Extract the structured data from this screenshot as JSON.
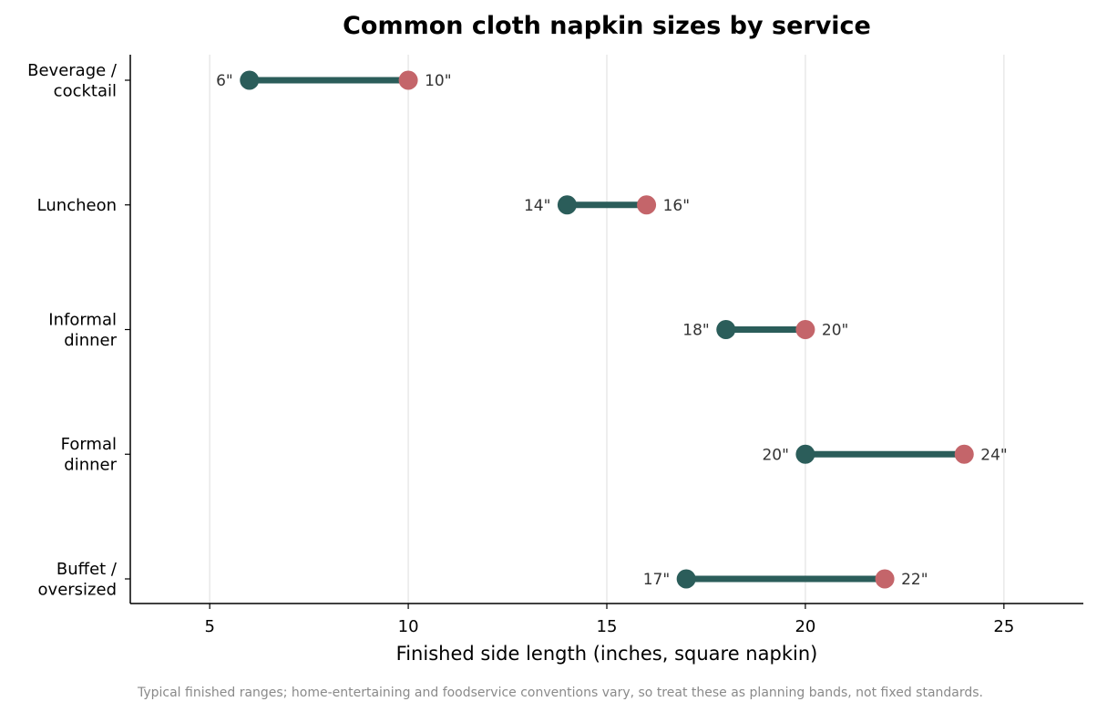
{
  "chart_data": {
    "type": "dumbbell",
    "title": "Common cloth napkin sizes by service",
    "xlabel": "Finished side length (inches, square napkin)",
    "ylabel": "",
    "xlim": [
      3,
      27
    ],
    "xticks": [
      5,
      10,
      15,
      20,
      25
    ],
    "grid": "vertical",
    "categories": [
      {
        "lines": [
          "Beverage /",
          "cocktail"
        ],
        "min": 6,
        "max": 10,
        "min_label": "6\"",
        "max_label": "10\""
      },
      {
        "lines": [
          "Luncheon"
        ],
        "min": 14,
        "max": 16,
        "min_label": "14\"",
        "max_label": "16\""
      },
      {
        "lines": [
          "Informal",
          "dinner"
        ],
        "min": 18,
        "max": 20,
        "min_label": "18\"",
        "max_label": "20\""
      },
      {
        "lines": [
          "Formal",
          "dinner"
        ],
        "min": 20,
        "max": 24,
        "min_label": "20\"",
        "max_label": "24\""
      },
      {
        "lines": [
          "Buffet /",
          "oversized"
        ],
        "min": 17,
        "max": 22,
        "min_label": "17\"",
        "max_label": "22\""
      }
    ],
    "colors": {
      "min_point": "#2b5d5a",
      "max_point": "#c4656a",
      "connector": "#2b5d5a",
      "grid": "#e3e3e3",
      "axis": "#000000"
    }
  },
  "footnote": "Typical finished ranges; home-entertaining and foodservice conventions vary, so treat these as planning bands, not fixed standards."
}
